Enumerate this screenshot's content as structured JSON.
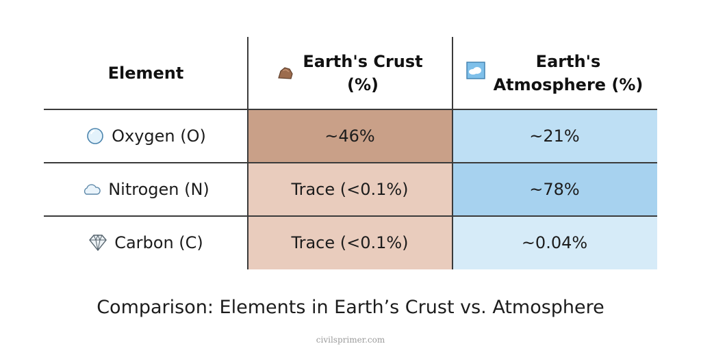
{
  "chart_data": {
    "type": "table",
    "columns": [
      {
        "label": "Element",
        "icon": null
      },
      {
        "label": "Earth's Crust (%)",
        "icon": "rock-icon"
      },
      {
        "label": "Earth's Atmosphere (%)",
        "icon": "sky-icon"
      }
    ],
    "header_lines": {
      "col0": [
        "Element"
      ],
      "col1": [
        "Earth's Crust",
        "(%)"
      ],
      "col2": [
        "Earth's",
        "Atmosphere (%)"
      ]
    },
    "rows": [
      {
        "element": "Oxygen (O)",
        "icon": "bubble-icon",
        "crust": "~46%",
        "atmosphere": "~21%"
      },
      {
        "element": "Nitrogen (N)",
        "icon": "cloud-icon",
        "crust": "Trace (<0.1%)",
        "atmosphere": "~78%"
      },
      {
        "element": "Carbon (C)",
        "icon": "diamond-icon",
        "crust": "Trace (<0.1%)",
        "atmosphere": "~0.04%"
      }
    ],
    "crust_values_pct": [
      46,
      0.1,
      0.1
    ],
    "atmosphere_values_pct": [
      21,
      78,
      0.04
    ],
    "caption": "Comparison: Elements in Earth’s Crust vs. Atmosphere"
  },
  "colors": {
    "crust_high": "#c9a088",
    "crust_low": "#e9ccbd",
    "atmo_mid": "#bedff4",
    "atmo_high": "#a7d2ef",
    "atmo_low": "#d6ebf8",
    "grid": "#3a3a3a"
  },
  "footer": {
    "source": "civilsprimer.com"
  }
}
